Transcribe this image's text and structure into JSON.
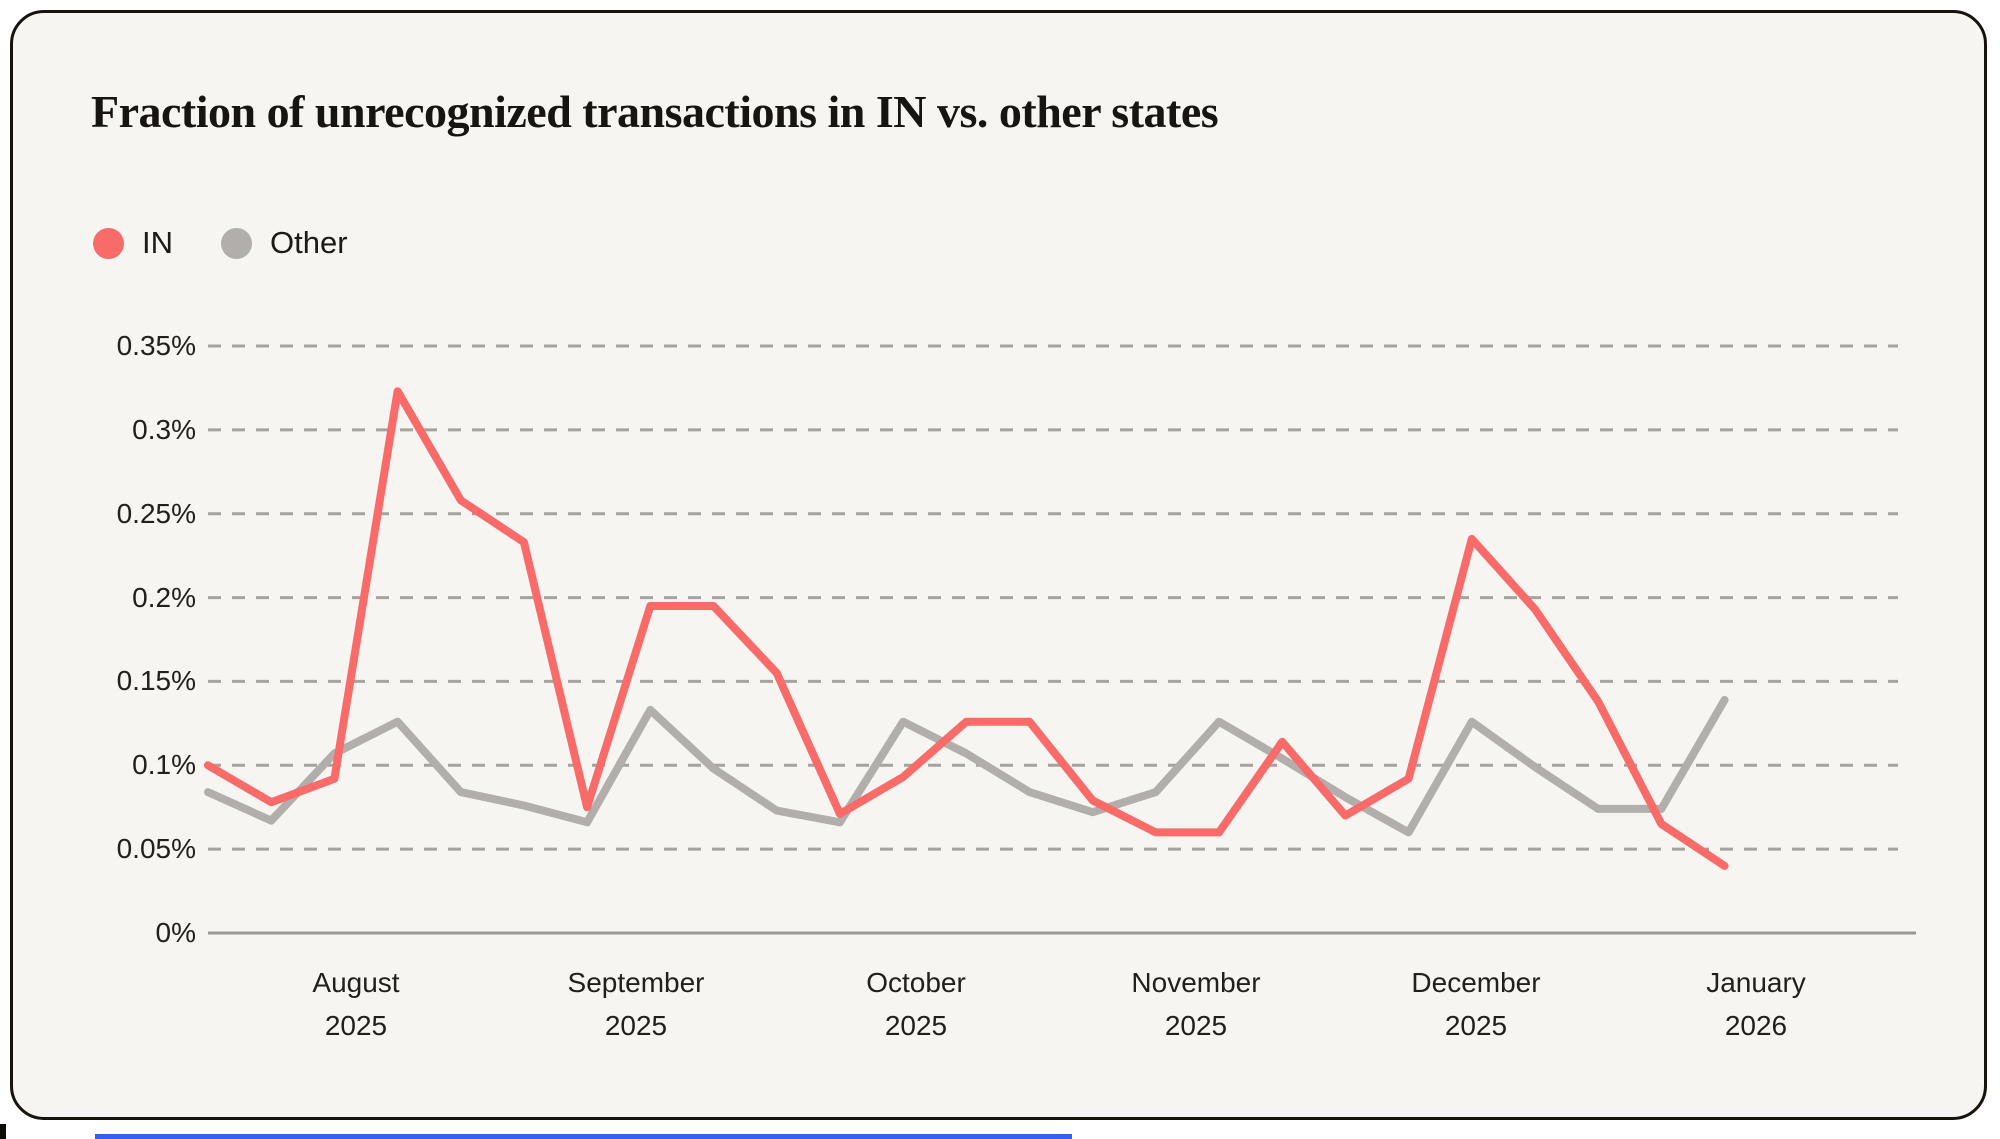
{
  "card": {
    "title": "Fraction of unrecognized transactions in IN vs. other states"
  },
  "legend": [
    {
      "label": "IN",
      "color": "#F96B69"
    },
    {
      "label": "Other",
      "color": "#B1AEAB"
    }
  ],
  "chart_data": {
    "type": "line",
    "title": "Fraction of unrecognized transactions in IN vs. other states",
    "xlabel": "",
    "ylabel": "",
    "y_unit": "percent",
    "ylim": [
      0,
      0.35
    ],
    "grid": "horizontal dashed",
    "legend_position": "top-left",
    "y_tick_labels": [
      "0%",
      "0.05%",
      "0.1%",
      "0.15%",
      "0.2%",
      "0.25%",
      "0.3%",
      "0.35%"
    ],
    "x_tick_labels": [
      [
        "August",
        "2025"
      ],
      [
        "September",
        "2025"
      ],
      [
        "October",
        "2025"
      ],
      [
        "November",
        "2025"
      ],
      [
        "December",
        "2025"
      ],
      [
        "January",
        "2026"
      ]
    ],
    "x_description": "25 points at regular (weekly) intervals from mid-July 2025 to early January 2026",
    "series": [
      {
        "name": "Other",
        "color": "#B1AEAB",
        "values": [
          0.084,
          0.067,
          0.107,
          0.126,
          0.084,
          0.076,
          0.066,
          0.133,
          0.098,
          0.073,
          0.066,
          0.126,
          0.107,
          0.084,
          0.072,
          0.084,
          0.126,
          0.104,
          0.081,
          0.06,
          0.126,
          0.099,
          0.074,
          0.074,
          0.139
        ]
      },
      {
        "name": "IN",
        "color": "#F96B69",
        "values": [
          0.1,
          0.078,
          0.092,
          0.323,
          0.258,
          0.233,
          0.075,
          0.195,
          0.195,
          0.155,
          0.071,
          0.093,
          0.126,
          0.126,
          0.079,
          0.06,
          0.06,
          0.114,
          0.07,
          0.092,
          0.235,
          0.193,
          0.138,
          0.065,
          0.04
        ]
      }
    ]
  },
  "colors": {
    "page_background": "#FFFFFF",
    "card_background": "#F7F5F1",
    "card_border": "#17130D",
    "grid_line": "#A6A29D",
    "axis_line": "#9C9894",
    "text": "#23201C",
    "series_in": "#F96B69",
    "series_other": "#B1AEAB",
    "bottom_accent": "#3560EF"
  }
}
